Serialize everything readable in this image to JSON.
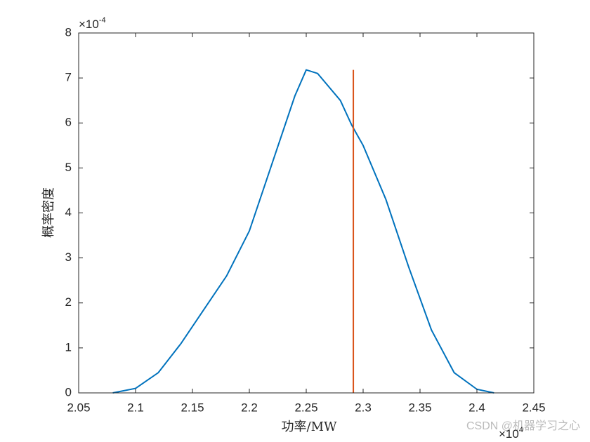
{
  "chart_data": {
    "type": "line",
    "xlabel": "功率/MW",
    "ylabel": "概率密度",
    "x_exponent_label": {
      "base": "×10",
      "power": "4"
    },
    "y_exponent_label": {
      "base": "×10",
      "power": "-4"
    },
    "watermark": "CSDN @机器学习之心",
    "xlim": [
      2.05,
      2.45
    ],
    "ylim": [
      0,
      8
    ],
    "xticks": [
      2.05,
      2.1,
      2.15,
      2.2,
      2.25,
      2.3,
      2.35,
      2.4,
      2.45
    ],
    "yticks": [
      0,
      1,
      2,
      3,
      4,
      5,
      6,
      7,
      8
    ],
    "grid": false,
    "series": [
      {
        "color": "#0072bd",
        "x": [
          2.08,
          2.1,
          2.12,
          2.14,
          2.16,
          2.18,
          2.2,
          2.22,
          2.24,
          2.25,
          2.26,
          2.28,
          2.29,
          2.3,
          2.32,
          2.34,
          2.36,
          2.38,
          2.4,
          2.415
        ],
        "values": [
          0,
          0.1,
          0.45,
          1.1,
          1.85,
          2.6,
          3.6,
          5.1,
          6.6,
          7.18,
          7.1,
          6.5,
          5.95,
          5.5,
          4.3,
          2.8,
          1.4,
          0.45,
          0.08,
          0
        ]
      },
      {
        "color": "#d95319",
        "x": [
          2.2914,
          2.2914
        ],
        "values": [
          0,
          7.18
        ]
      }
    ]
  }
}
